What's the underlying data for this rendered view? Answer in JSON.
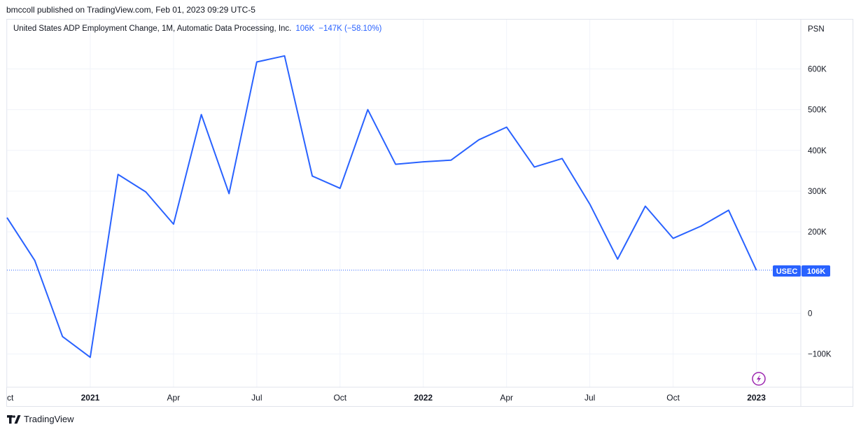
{
  "publisher_line": "bmccoll published on TradingView.com, Feb 01, 2023 09:29 UTC-5",
  "legend": {
    "title": "United States ADP Employment Change, 1M, Automatic Data Processing, Inc.",
    "value": "106K",
    "change": "−147K (−58.10%)"
  },
  "price_badge": {
    "symbol": "USEC",
    "value": "106K"
  },
  "unit_label": "PSN",
  "footer": {
    "brand": "TradingView"
  },
  "colors": {
    "line": "#2962ff",
    "grid": "#f0f3fa",
    "badge": "#2962ff",
    "icon": "#9c27b0"
  },
  "icons": [
    "tradingview-logo-icon",
    "lightning-icon"
  ],
  "chart_data": {
    "type": "line",
    "title": "United States ADP Employment Change",
    "xlabel": "",
    "ylabel": "",
    "y_unit": "K",
    "ylim": [
      -175,
      700
    ],
    "grid": true,
    "x": [
      "2020-10",
      "2020-11",
      "2020-12",
      "2021-01",
      "2021-02",
      "2021-03",
      "2021-04",
      "2021-05",
      "2021-06",
      "2021-07",
      "2021-08",
      "2021-09",
      "2021-10",
      "2021-11",
      "2021-12",
      "2022-01",
      "2022-02",
      "2022-03",
      "2022-04",
      "2022-05",
      "2022-06",
      "2022-07",
      "2022-08",
      "2022-09",
      "2022-10",
      "2022-11",
      "2022-12",
      "2023-01"
    ],
    "series": [
      {
        "values": [
          235,
          130,
          -57,
          -108,
          341,
          298,
          219,
          488,
          294,
          617,
          632,
          337,
          307,
          500,
          366,
          372,
          376,
          426,
          457,
          359,
          380,
          268,
          133,
          263,
          184,
          214,
          253,
          106
        ]
      }
    ],
    "y_ticks": [
      {
        "value": 600,
        "label": "600K"
      },
      {
        "value": 500,
        "label": "500K"
      },
      {
        "value": 400,
        "label": "400K"
      },
      {
        "value": 300,
        "label": "300K"
      },
      {
        "value": 200,
        "label": "200K"
      },
      {
        "value": 0,
        "label": "0"
      },
      {
        "value": -100,
        "label": "−100K"
      }
    ],
    "x_ticks": [
      {
        "index": 0,
        "label": "ct",
        "bold": false
      },
      {
        "index": 3,
        "label": "2021",
        "bold": true
      },
      {
        "index": 6,
        "label": "Apr",
        "bold": false
      },
      {
        "index": 9,
        "label": "Jul",
        "bold": false
      },
      {
        "index": 12,
        "label": "Oct",
        "bold": false
      },
      {
        "index": 15,
        "label": "2022",
        "bold": true
      },
      {
        "index": 18,
        "label": "Apr",
        "bold": false
      },
      {
        "index": 21,
        "label": "Jul",
        "bold": false
      },
      {
        "index": 24,
        "label": "Oct",
        "bold": false
      },
      {
        "index": 27,
        "label": "2023",
        "bold": true
      }
    ],
    "last_value": 106
  }
}
